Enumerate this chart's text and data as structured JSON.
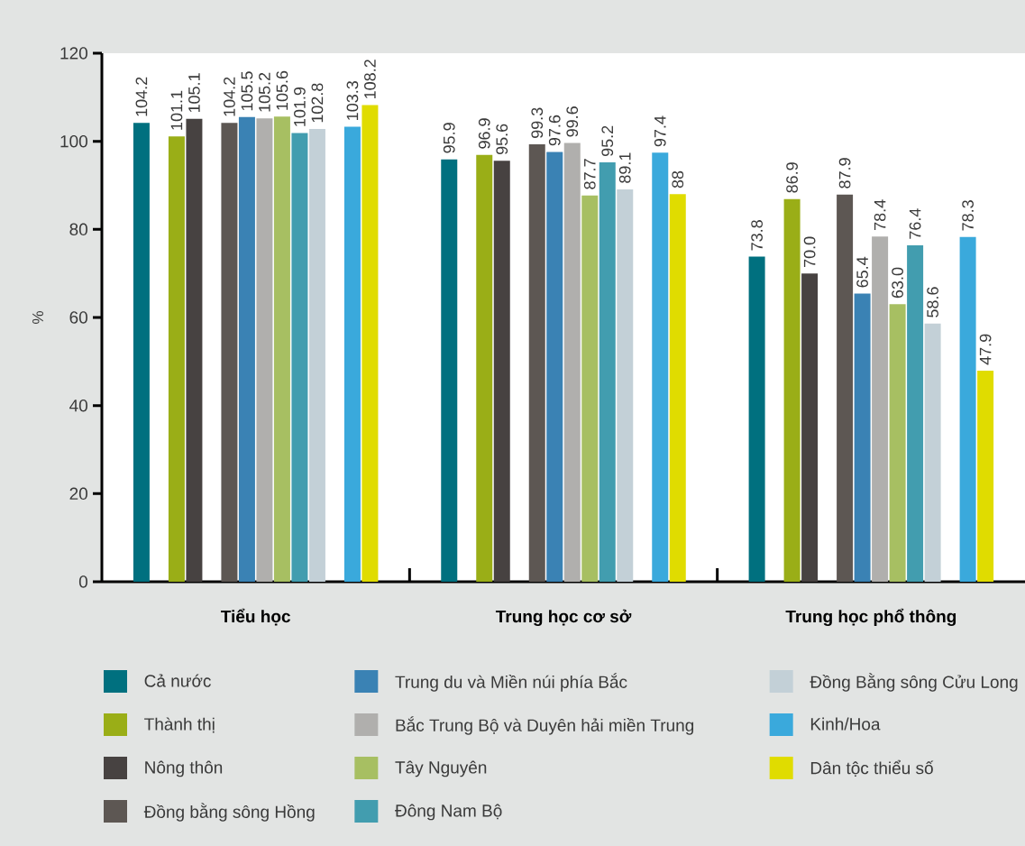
{
  "chart_data": {
    "type": "bar",
    "ylabel": "%",
    "categories": [
      "Tiểu học",
      "Trung học cơ sở",
      "Trung học phổ thông"
    ],
    "series": [
      {
        "name": "Cả nước",
        "color": "#00707f",
        "values": [
          104.2,
          95.9,
          73.8
        ],
        "value_labels": [
          "104.2",
          "95.9",
          "73.8"
        ]
      },
      {
        "name": "Thành thị",
        "color": "#9aae17",
        "values": [
          101.1,
          96.9,
          86.9
        ],
        "value_labels": [
          "101.1",
          "96.9",
          "86.9"
        ]
      },
      {
        "name": "Nông thôn",
        "color": "#474241",
        "values": [
          105.1,
          95.6,
          70.0
        ],
        "value_labels": [
          "105.1",
          "95.6",
          "70.0"
        ]
      },
      {
        "name": "Đồng bằng sông Hồng",
        "color": "#5d5753",
        "values": [
          104.2,
          99.3,
          87.9
        ],
        "value_labels": [
          "104.2",
          "99.3",
          "87.9"
        ]
      },
      {
        "name": "Trung du và Miền núi phía Bắc",
        "color": "#3a82b4",
        "values": [
          105.5,
          97.6,
          65.4
        ],
        "value_labels": [
          "105.5",
          "97.6",
          "65.4"
        ]
      },
      {
        "name": "Bắc Trung Bộ và Duyên hải miền Trung",
        "color": "#b0afad",
        "values": [
          105.2,
          99.6,
          78.4
        ],
        "value_labels": [
          "105.2",
          "99.6",
          "78.4"
        ]
      },
      {
        "name": "Tây Nguyên",
        "color": "#a7bf62",
        "values": [
          105.6,
          87.7,
          63.0
        ],
        "value_labels": [
          "105.6",
          "87.7",
          "63.0"
        ]
      },
      {
        "name": "Đông Nam Bộ",
        "color": "#429daf",
        "values": [
          101.9,
          95.2,
          76.4
        ],
        "value_labels": [
          "101.9",
          "95.2",
          "76.4"
        ]
      },
      {
        "name": "Đồng Bằng sông Cửu Long",
        "color": "#c3d0d7",
        "values": [
          102.8,
          89.1,
          58.6
        ],
        "value_labels": [
          "102.8",
          "89.1",
          "58.6"
        ]
      },
      {
        "name": "Kinh/Hoa",
        "color": "#3aa9dc",
        "values": [
          103.3,
          97.4,
          78.3
        ],
        "value_labels": [
          "103.3",
          "97.4",
          "78.3"
        ]
      },
      {
        "name": "Dân tộc thiểu số",
        "color": "#e0dc00",
        "values": [
          108.2,
          88,
          47.9
        ],
        "value_labels": [
          "108.2",
          "88",
          "47.9"
        ]
      }
    ],
    "ylim": [
      0,
      120
    ],
    "yticks": [
      0,
      20,
      40,
      60,
      80,
      100,
      120
    ],
    "legend": "bottom"
  }
}
